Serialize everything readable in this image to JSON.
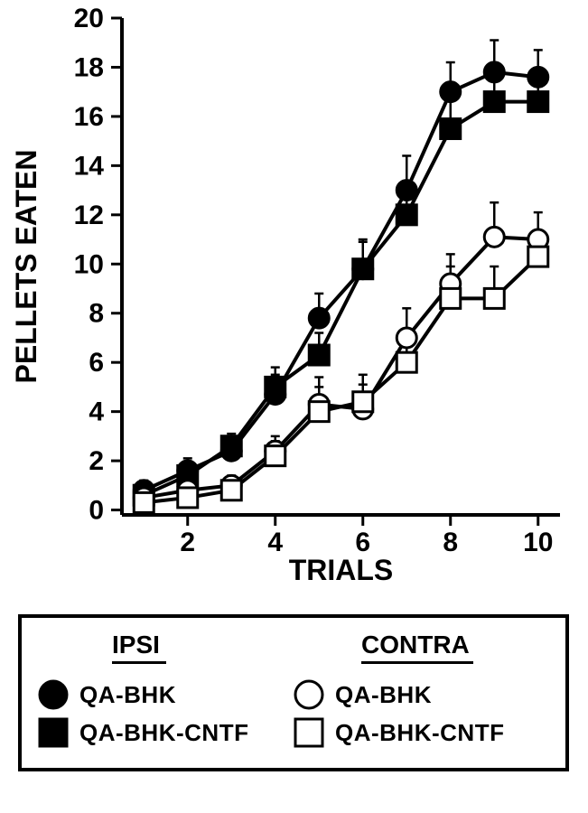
{
  "chart": {
    "type": "line",
    "background_color": "#ffffff",
    "axis_color": "#000000",
    "axis_linewidth": 4,
    "tick_linewidth": 3,
    "tick_length": 12,
    "grid": false,
    "xlabel": "TRIALS",
    "ylabel": "PELLETS EATEN",
    "label_fontsize": 32,
    "tick_fontsize": 30,
    "font_weight": "bold",
    "xlim": [
      0.5,
      10.5
    ],
    "ylim": [
      -0.2,
      20
    ],
    "xtick_step": 2,
    "xtick_start": 2,
    "ytick_step": 2,
    "ytick_start": 0,
    "marker_size": 11,
    "marker_stroke": 3,
    "line_width": 4,
    "error_cap_width": 10,
    "error_line_width": 2.5,
    "series": [
      {
        "name": "QA-BHK IPSI",
        "marker": "circle",
        "fill": "#000000",
        "stroke": "#000000",
        "line_color": "#000000",
        "x": [
          1,
          2,
          3,
          4,
          5,
          6,
          7,
          8,
          9,
          10
        ],
        "y": [
          0.8,
          1.6,
          2.4,
          4.7,
          7.8,
          9.8,
          13.0,
          17.0,
          17.8,
          17.6
        ],
        "err": [
          0.4,
          0.5,
          0.6,
          0.8,
          1.0,
          1.2,
          1.4,
          1.2,
          1.3,
          1.1
        ]
      },
      {
        "name": "QA-BHK-CNTF IPSI",
        "marker": "square",
        "fill": "#000000",
        "stroke": "#000000",
        "line_color": "#000000",
        "x": [
          1,
          2,
          3,
          4,
          5,
          6,
          7,
          8,
          9,
          10
        ],
        "y": [
          0.6,
          1.4,
          2.6,
          5.0,
          6.3,
          9.8,
          12.0,
          15.5,
          16.6,
          16.6
        ],
        "err": [
          0.3,
          0.4,
          0.5,
          0.8,
          0.9,
          1.1,
          1.3,
          1.2,
          1.0,
          1.0
        ]
      },
      {
        "name": "QA-BHK CONTRA",
        "marker": "circle",
        "fill": "#ffffff",
        "stroke": "#000000",
        "line_color": "#000000",
        "x": [
          1,
          2,
          3,
          4,
          5,
          6,
          7,
          8,
          9,
          10
        ],
        "y": [
          0.5,
          0.8,
          1.0,
          2.4,
          4.3,
          4.1,
          7.0,
          9.2,
          11.1,
          11.0
        ],
        "err": [
          0.3,
          0.3,
          0.4,
          0.6,
          1.1,
          1.0,
          1.2,
          1.2,
          1.4,
          1.1
        ]
      },
      {
        "name": "QA-BHK-CNTF CONTRA",
        "marker": "square",
        "fill": "#ffffff",
        "stroke": "#000000",
        "line_color": "#000000",
        "x": [
          1,
          2,
          3,
          4,
          5,
          6,
          7,
          8,
          9,
          10
        ],
        "y": [
          0.3,
          0.5,
          0.8,
          2.2,
          4.0,
          4.4,
          6.0,
          8.6,
          8.6,
          10.3
        ],
        "err": [
          0.3,
          0.3,
          0.4,
          0.6,
          1.0,
          1.1,
          1.2,
          1.3,
          1.3,
          1.0
        ]
      }
    ]
  },
  "legend": {
    "border_color": "#000000",
    "border_width": 4,
    "headers": {
      "left": "IPSI",
      "right": "CONTRA"
    },
    "header_fontsize": 28,
    "header_fontweight": "bold",
    "underline_color": "#000000",
    "label_fontsize": 26,
    "items": [
      {
        "left": {
          "marker": "circle",
          "fill": "#000000",
          "stroke": "#000000",
          "label": "QA-BHK"
        },
        "right": {
          "marker": "circle",
          "fill": "#ffffff",
          "stroke": "#000000",
          "label": "QA-BHK"
        }
      },
      {
        "left": {
          "marker": "square",
          "fill": "#000000",
          "stroke": "#000000",
          "label": "QA-BHK-CNTF"
        },
        "right": {
          "marker": "square",
          "fill": "#ffffff",
          "stroke": "#000000",
          "label": "QA-BHK-CNTF"
        }
      }
    ]
  }
}
